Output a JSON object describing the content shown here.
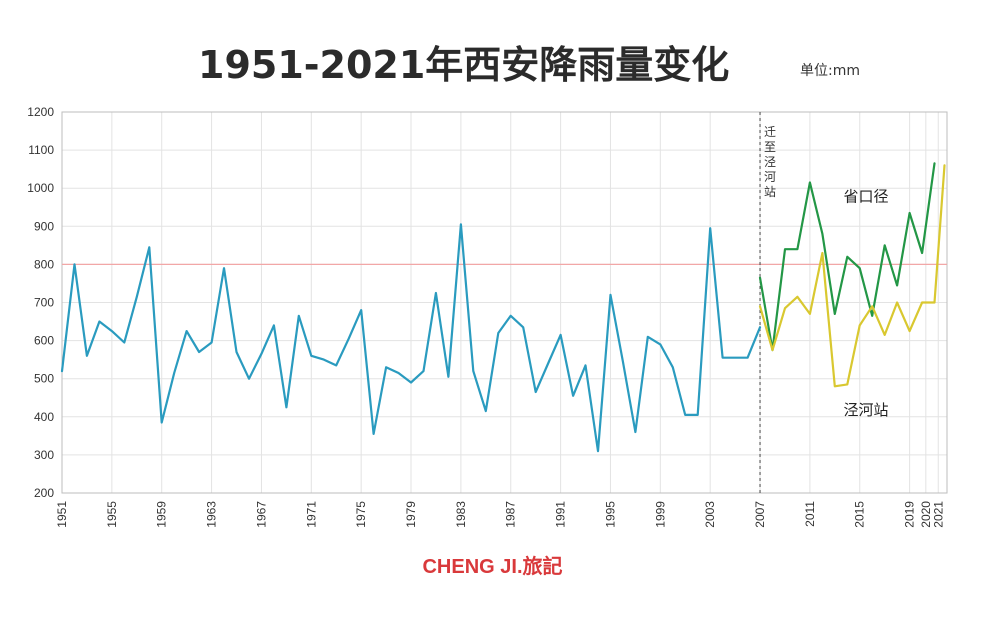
{
  "header": {
    "title": "1951-2021年西安降雨量变化",
    "unit": "单位:mm"
  },
  "brand": "CHENG JI.旅記",
  "chart_data": {
    "type": "line",
    "title": "1951-2021年西安降雨量变化",
    "unit": "单位:mm",
    "ylim": [
      200,
      1200
    ],
    "xlim": [
      1951,
      2022
    ],
    "y_ticks": [
      200,
      300,
      400,
      500,
      600,
      700,
      800,
      900,
      1000,
      1100,
      1200
    ],
    "x_ticks": [
      "1951",
      "1955",
      "1959",
      "1963",
      "1967",
      "1971",
      "1975",
      "1979",
      "1983",
      "1987",
      "1991",
      "1995",
      "1999",
      "2003",
      "2007",
      "2011",
      "2015",
      "2019",
      "2020",
      "2021"
    ],
    "x_tick_years": [
      1951,
      1955,
      1959,
      1963,
      1967,
      1971,
      1975,
      1979,
      1983,
      1987,
      1991,
      1995,
      1999,
      2003,
      2007,
      2011,
      2015,
      2019,
      2020.3,
      2021.3
    ],
    "reference_line": {
      "y": 800,
      "color": "#f2a7a7"
    },
    "relocation_marker": {
      "x": 2007,
      "label": "迁至泾河站"
    },
    "grid": true,
    "series": [
      {
        "name": "",
        "color": "#2a9bbf",
        "points": [
          [
            1951,
            520
          ],
          [
            1952,
            800
          ],
          [
            1953,
            560
          ],
          [
            1954,
            650
          ],
          [
            1955,
            625
          ],
          [
            1956,
            595
          ],
          [
            1957,
            715
          ],
          [
            1958,
            845
          ],
          [
            1959,
            385
          ],
          [
            1960,
            515
          ],
          [
            1961,
            625
          ],
          [
            1962,
            570
          ],
          [
            1963,
            595
          ],
          [
            1964,
            790
          ],
          [
            1965,
            570
          ],
          [
            1966,
            500
          ],
          [
            1967,
            565
          ],
          [
            1968,
            640
          ],
          [
            1969,
            425
          ],
          [
            1970,
            665
          ],
          [
            1971,
            560
          ],
          [
            1972,
            550
          ],
          [
            1973,
            535
          ],
          [
            1974,
            605
          ],
          [
            1975,
            680
          ],
          [
            1976,
            355
          ],
          [
            1977,
            530
          ],
          [
            1978,
            515
          ],
          [
            1979,
            490
          ],
          [
            1980,
            520
          ],
          [
            1981,
            725
          ],
          [
            1982,
            505
          ],
          [
            1983,
            905
          ],
          [
            1984,
            520
          ],
          [
            1985,
            415
          ],
          [
            1986,
            620
          ],
          [
            1987,
            665
          ],
          [
            1988,
            635
          ],
          [
            1989,
            465
          ],
          [
            1990,
            540
          ],
          [
            1991,
            615
          ],
          [
            1992,
            455
          ],
          [
            1993,
            535
          ],
          [
            1994,
            310
          ],
          [
            1995,
            720
          ],
          [
            1996,
            545
          ],
          [
            1997,
            360
          ],
          [
            1998,
            610
          ],
          [
            1999,
            590
          ],
          [
            2000,
            530
          ],
          [
            2001,
            405
          ],
          [
            2002,
            405
          ],
          [
            2003,
            895
          ],
          [
            2004,
            555
          ],
          [
            2005,
            555
          ],
          [
            2006,
            555
          ],
          [
            2007,
            635
          ]
        ]
      },
      {
        "name": "省口径",
        "color": "#239746",
        "points": [
          [
            2007,
            765
          ],
          [
            2008,
            575
          ],
          [
            2009,
            840
          ],
          [
            2010,
            840
          ],
          [
            2011,
            1015
          ],
          [
            2012,
            880
          ],
          [
            2013,
            670
          ],
          [
            2014,
            820
          ],
          [
            2015,
            790
          ],
          [
            2016,
            665
          ],
          [
            2017,
            850
          ],
          [
            2018,
            745
          ],
          [
            2019,
            935
          ],
          [
            2020,
            830
          ],
          [
            2021,
            1065
          ]
        ]
      },
      {
        "name": "泾河站",
        "color": "#d9c830",
        "points": [
          [
            2007,
            690
          ],
          [
            2008,
            575
          ],
          [
            2009,
            685
          ],
          [
            2010,
            715
          ],
          [
            2011,
            670
          ],
          [
            2012,
            830
          ],
          [
            2013,
            480
          ],
          [
            2014,
            485
          ],
          [
            2015,
            640
          ],
          [
            2016,
            690
          ],
          [
            2017,
            615
          ],
          [
            2018,
            700
          ],
          [
            2019,
            625
          ],
          [
            2020,
            700
          ],
          [
            2021,
            700
          ],
          [
            2021.8,
            1060
          ]
        ]
      }
    ],
    "labels": [
      {
        "text": "省口径",
        "at": [
          2015.5,
          965
        ]
      },
      {
        "text": "泾河站",
        "at": [
          2015.5,
          405
        ]
      }
    ]
  }
}
